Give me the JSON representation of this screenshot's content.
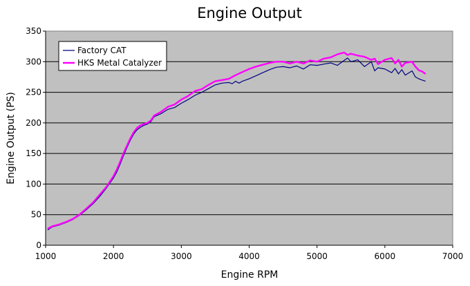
{
  "chart_data": {
    "type": "line",
    "title": "Engine Output",
    "xlabel": "Engine RPM",
    "ylabel": "Engine Output (PS)",
    "xlim": [
      1000,
      7000
    ],
    "ylim": [
      0,
      350
    ],
    "xticks": [
      1000,
      2000,
      3000,
      4000,
      5000,
      6000,
      7000
    ],
    "yticks": [
      0,
      50,
      100,
      150,
      200,
      250,
      300,
      350
    ],
    "grid": true,
    "plot_background": "#C0C0C0",
    "legend_position": "top-left",
    "series": [
      {
        "name": "Factory CAT",
        "color": "#000080",
        "x": [
          1030,
          1100,
          1200,
          1300,
          1400,
          1500,
          1600,
          1700,
          1800,
          1900,
          2000,
          2050,
          2100,
          2150,
          2200,
          2250,
          2300,
          2350,
          2400,
          2450,
          2500,
          2550,
          2600,
          2700,
          2800,
          2900,
          3000,
          3100,
          3200,
          3300,
          3400,
          3500,
          3600,
          3700,
          3750,
          3800,
          3850,
          3900,
          4000,
          4100,
          4200,
          4300,
          4400,
          4500,
          4600,
          4700,
          4800,
          4900,
          5000,
          5100,
          5200,
          5300,
          5400,
          5450,
          5500,
          5600,
          5700,
          5800,
          5850,
          5900,
          6000,
          6100,
          6150,
          6200,
          6250,
          6300,
          6400,
          6450,
          6500,
          6550,
          6600
        ],
        "y": [
          25,
          30,
          33,
          37,
          42,
          49,
          58,
          68,
          80,
          94,
          110,
          120,
          133,
          147,
          160,
          172,
          182,
          189,
          193,
          196,
          198,
          202,
          210,
          215,
          222,
          225,
          232,
          238,
          245,
          250,
          256,
          262,
          265,
          266,
          264,
          268,
          265,
          268,
          272,
          277,
          282,
          287,
          291,
          292,
          290,
          293,
          288,
          295,
          294,
          296,
          298,
          294,
          302,
          306,
          300,
          303,
          292,
          300,
          285,
          290,
          288,
          282,
          289,
          280,
          287,
          278,
          285,
          275,
          272,
          270,
          268
        ]
      },
      {
        "name": "HKS Metal Catalyzer",
        "color": "#FF00FF",
        "x": [
          1030,
          1100,
          1200,
          1300,
          1400,
          1500,
          1600,
          1700,
          1800,
          1900,
          2000,
          2050,
          2100,
          2150,
          2200,
          2250,
          2300,
          2350,
          2400,
          2450,
          2500,
          2550,
          2600,
          2700,
          2800,
          2900,
          3000,
          3100,
          3200,
          3300,
          3400,
          3500,
          3600,
          3700,
          3800,
          3900,
          4000,
          4100,
          4200,
          4300,
          4400,
          4500,
          4600,
          4700,
          4800,
          4900,
          5000,
          5100,
          5200,
          5300,
          5400,
          5450,
          5500,
          5600,
          5700,
          5800,
          5850,
          5900,
          6000,
          6100,
          6150,
          6200,
          6250,
          6300,
          6400,
          6450,
          6500,
          6550,
          6600
        ],
        "y": [
          27,
          31,
          34,
          38,
          43,
          50,
          60,
          70,
          83,
          96,
          113,
          124,
          137,
          151,
          163,
          175,
          185,
          192,
          196,
          198,
          200,
          204,
          212,
          218,
          226,
          230,
          238,
          244,
          252,
          255,
          262,
          268,
          270,
          272,
          278,
          283,
          288,
          292,
          295,
          298,
          300,
          300,
          297,
          300,
          297,
          302,
          300,
          305,
          307,
          312,
          315,
          311,
          313,
          310,
          308,
          303,
          305,
          296,
          303,
          306,
          297,
          303,
          292,
          298,
          300,
          292,
          286,
          284,
          280
        ]
      }
    ]
  }
}
